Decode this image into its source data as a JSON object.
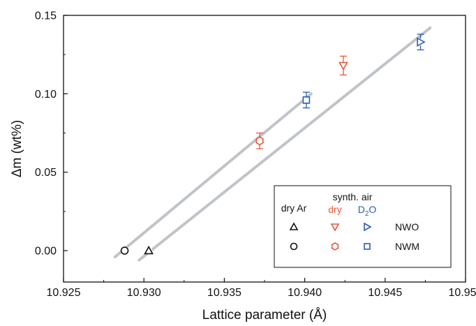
{
  "chart_data": {
    "type": "scatter",
    "xlabel": "Lattice parameter (Å)",
    "ylabel": "Δm (wt%)",
    "xlim": [
      10.925,
      10.95
    ],
    "ylim": [
      -0.02,
      0.15
    ],
    "xticks": [
      10.925,
      10.93,
      10.935,
      10.94,
      10.945,
      10.95
    ],
    "xtick_labels": [
      "10.925",
      "10.930",
      "10.935",
      "10.940",
      "10.945",
      "10.950"
    ],
    "yticks": [
      0.0,
      0.05,
      0.1,
      0.15
    ],
    "ytick_labels": [
      "0.00",
      "0.05",
      "0.10",
      "0.15"
    ],
    "grid": false,
    "points": [
      {
        "x": 10.9288,
        "y": 0.0,
        "err": 0,
        "marker": "circle",
        "color": "#111111",
        "group": "dry Ar",
        "sample": "NWM"
      },
      {
        "x": 10.9303,
        "y": 0.0,
        "err": 0,
        "marker": "triangle-up",
        "color": "#111111",
        "group": "dry Ar",
        "sample": "NWO"
      },
      {
        "x": 10.9372,
        "y": 0.07,
        "err": 0.005,
        "marker": "hexagon",
        "color": "#e8573a",
        "group": "synth. air dry",
        "sample": "NWM"
      },
      {
        "x": 10.9424,
        "y": 0.118,
        "err": 0.006,
        "marker": "triangle-down",
        "color": "#e8573a",
        "group": "synth. air dry",
        "sample": "NWO"
      },
      {
        "x": 10.9401,
        "y": 0.096,
        "err": 0.005,
        "marker": "square",
        "color": "#2a5db0",
        "group": "synth. air D2O",
        "sample": "NWM"
      },
      {
        "x": 10.9472,
        "y": 0.133,
        "err": 0.005,
        "marker": "triangle-right",
        "color": "#2a5db0",
        "group": "synth. air D2O",
        "sample": "NWO"
      }
    ],
    "fit_lines": [
      {
        "x": [
          10.9282,
          10.9404
        ],
        "y": [
          -0.004,
          0.1
        ],
        "color": "#c0c4c8"
      },
      {
        "x": [
          10.9297,
          10.9478
        ],
        "y": [
          -0.006,
          0.142
        ],
        "color": "#c0c4c8"
      }
    ],
    "legend": {
      "placement": "bottom-right",
      "column_headers": {
        "dry_ar": "dry Ar",
        "synth_air": "synth. air",
        "dry": "dry",
        "d2o_main": "D",
        "d2o_sub": "2",
        "d2o_tail": "O"
      },
      "rows": [
        {
          "label": "NWO",
          "markers": [
            "triangle-up",
            "triangle-down",
            "triangle-right"
          ]
        },
        {
          "label": "NWM",
          "markers": [
            "circle",
            "hexagon",
            "square"
          ]
        }
      ],
      "colors": [
        "#111111",
        "#e8573a",
        "#2a5db0"
      ]
    }
  }
}
